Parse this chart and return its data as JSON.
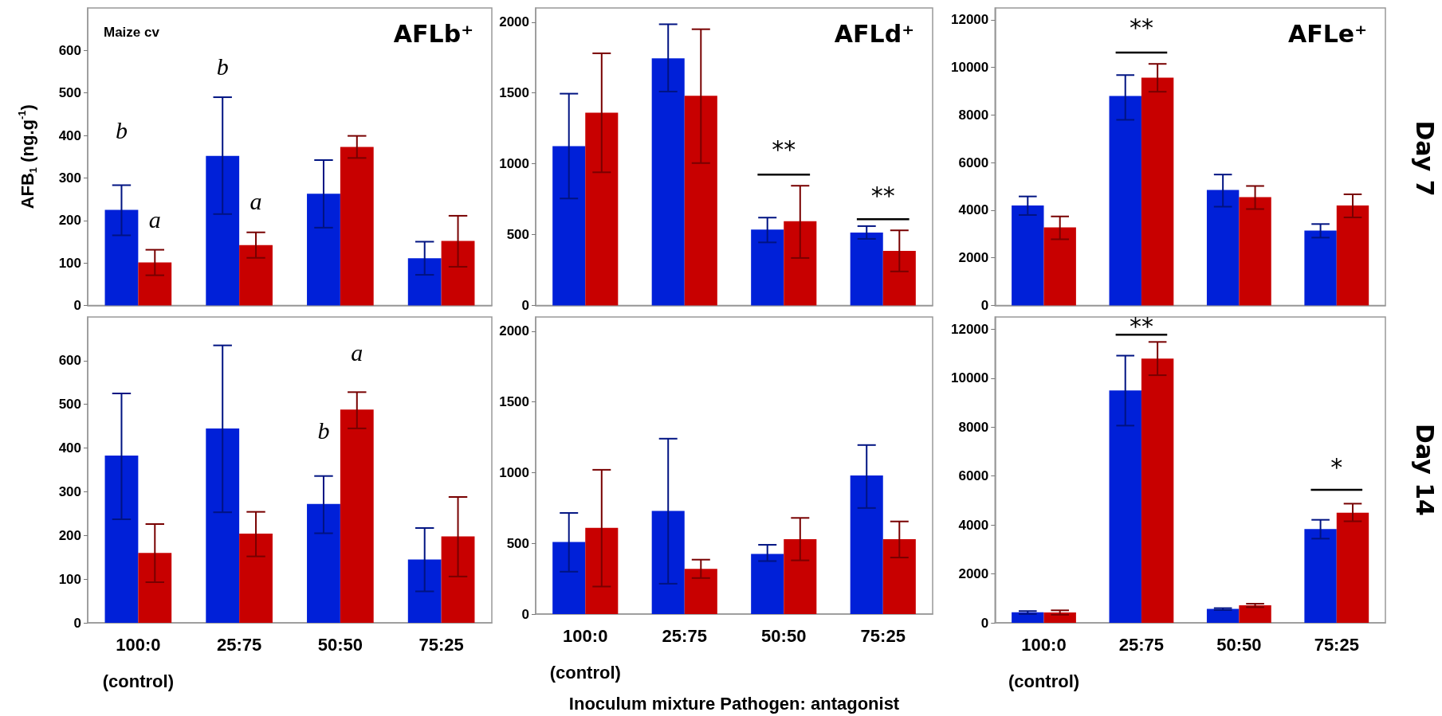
{
  "chart_data": [
    {
      "type": "bar",
      "title": "AFLb⁺",
      "ylabel": "AFB$_{1}$ (ng.g$^{-1}$)",
      "categories": [
        null,
        null,
        null,
        null
      ],
      "tick_labels": "y",
      "series": [
        {
          "color": "#0020d8",
          "values": [
            225,
            352,
            263,
            111
          ],
          "errors": [
            [
              165,
              283
            ],
            [
              215,
              490
            ],
            [
              183,
              342
            ],
            [
              72,
              150
            ]
          ]
        },
        {
          "color": "#c80000",
          "values": [
            101,
            142,
            373,
            152
          ],
          "errors": [
            [
              71,
              131
            ],
            [
              112,
              172
            ],
            [
              347,
              399
            ],
            [
              91,
              211
            ]
          ]
        }
      ],
      "ylim": [
        0,
        700
      ],
      "yticks": [
        0,
        100,
        200,
        300,
        400,
        500,
        600
      ],
      "annotations": [
        "Maize cv",
        "b",
        "a",
        "b",
        "a"
      ]
    },
    {
      "type": "bar",
      "title": "AFLd⁺",
      "categories": [
        null,
        null,
        null,
        null
      ],
      "tick_labels": "y",
      "series": [
        {
          "color": "#0020d8",
          "values": [
            1125,
            1745,
            535,
            515
          ],
          "errors": [
            [
              755,
              1495
            ],
            [
              1510,
              1985
            ],
            [
              445,
              620
            ],
            [
              470,
              560
            ]
          ]
        },
        {
          "color": "#c80000",
          "values": [
            1360,
            1480,
            595,
            385
          ],
          "errors": [
            [
              940,
              1780
            ],
            [
              1005,
              1950
            ],
            [
              335,
              845
            ],
            [
              240,
              530
            ]
          ]
        }
      ],
      "ylim": [
        0,
        2100
      ],
      "yticks": [
        0,
        500,
        1000,
        1500,
        2000
      ],
      "annotations": [
        "**",
        "**"
      ]
    },
    {
      "type": "bar",
      "title": "AFLe⁺",
      "y2label": "Day 7",
      "categories": [
        null,
        null,
        null,
        null
      ],
      "tick_labels": "y",
      "series": [
        {
          "color": "#0020d8",
          "values": [
            4200,
            8800,
            4850,
            3150
          ],
          "errors": [
            [
              3800,
              4580
            ],
            [
              7800,
              9680
            ],
            [
              4150,
              5500
            ],
            [
              2850,
              3420
            ]
          ]
        },
        {
          "color": "#c80000",
          "values": [
            3280,
            9570,
            4550,
            4200
          ],
          "errors": [
            [
              2780,
              3740
            ],
            [
              8980,
              10150
            ],
            [
              4050,
              5020
            ],
            [
              3700,
              4670
            ]
          ]
        }
      ],
      "ylim": [
        0,
        12500
      ],
      "yticks": [
        0,
        2000,
        4000,
        6000,
        8000,
        10000,
        12000
      ],
      "annotations": [
        "**"
      ]
    },
    {
      "type": "bar",
      "categories": [
        "100:0\n(control)",
        "25:75",
        "50:50",
        "75:25"
      ],
      "series": [
        {
          "color": "#0020d8",
          "values": [
            383,
            445,
            272,
            145
          ],
          "errors": [
            [
              237,
              525
            ],
            [
              253,
              635
            ],
            [
              205,
              336
            ],
            [
              72,
              217
            ]
          ]
        },
        {
          "color": "#c80000",
          "values": [
            160,
            204,
            488,
            198
          ],
          "errors": [
            [
              93,
              226
            ],
            [
              152,
              254
            ],
            [
              445,
              528
            ],
            [
              106,
              288
            ]
          ]
        }
      ],
      "ylim": [
        0,
        700
      ],
      "yticks": [
        0,
        100,
        200,
        300,
        400,
        500,
        600
      ],
      "annotations": [
        "a",
        "b"
      ]
    },
    {
      "type": "bar",
      "xlabel": "Inoculum mixture Pathogen: antagonist",
      "categories": [
        "100:0\n(control)",
        "25:75",
        "50:50",
        "75:25"
      ],
      "series": [
        {
          "color": "#0020d8",
          "values": [
            510,
            730,
            425,
            980
          ],
          "errors": [
            [
              300,
              715
            ],
            [
              215,
              1240
            ],
            [
              375,
              490
            ],
            [
              750,
              1195
            ]
          ]
        },
        {
          "color": "#c80000",
          "values": [
            610,
            320,
            530,
            530
          ],
          "errors": [
            [
              195,
              1020
            ],
            [
              255,
              385
            ],
            [
              380,
              680
            ],
            [
              400,
              655
            ]
          ]
        }
      ],
      "ylim": [
        0,
        2100
      ],
      "yticks": [
        0,
        500,
        1000,
        1500,
        2000
      ]
    },
    {
      "type": "bar",
      "y2label": "Day 14",
      "categories": [
        "100:0\n(control)",
        "25:75",
        "50:50",
        "75:25"
      ],
      "series": [
        {
          "color": "#0020d8",
          "values": [
            430,
            9500,
            570,
            3830
          ],
          "errors": [
            [
              360,
              480
            ],
            [
              8060,
              10920
            ],
            [
              520,
              600
            ],
            [
              3440,
              4210
            ]
          ]
        },
        {
          "color": "#c80000",
          "values": [
            420,
            10800,
            720,
            4500
          ],
          "errors": [
            [
              330,
              510
            ],
            [
              10120,
              11480
            ],
            [
              640,
              780
            ],
            [
              4150,
              4870
            ]
          ]
        }
      ],
      "ylim": [
        0,
        12500
      ],
      "yticks": [
        0,
        2000,
        4000,
        6000,
        8000,
        10000,
        12000
      ],
      "annotations": [
        "**",
        "*"
      ]
    }
  ]
}
